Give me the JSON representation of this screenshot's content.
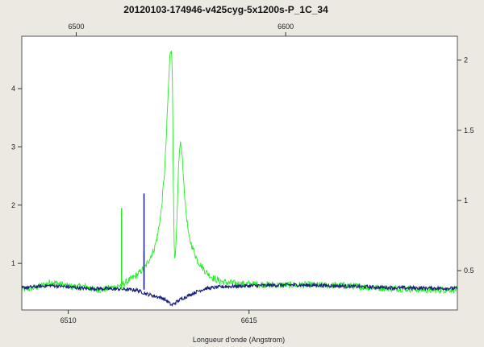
{
  "chart_data": {
    "type": "line",
    "title": "20120103-174946-v425cyg-5x1200s-P_1C_34",
    "xlabel": "Longueur d'onde (Angstrom)",
    "x_bottom": {
      "ticks": [
        6510,
        6615
      ],
      "labels": [
        "6510",
        "6615"
      ]
    },
    "x_top": {
      "ticks": [
        6500,
        6600
      ],
      "labels": [
        "6500",
        "6600"
      ]
    },
    "y_left": {
      "range": [
        0.2,
        4.9
      ],
      "ticks": [
        1,
        2,
        3,
        4
      ],
      "labels": [
        "1",
        "2",
        "3",
        "4"
      ]
    },
    "y_right": {
      "range": [
        0.22,
        2.17
      ],
      "ticks": [
        0.5,
        1,
        1.5,
        2
      ],
      "labels": [
        "0.5",
        "1",
        "1.5",
        "2"
      ]
    },
    "grid": false,
    "series": [
      {
        "color": "#22ee22",
        "axis": "left",
        "noise": 0.06,
        "x": [
          6483,
          6490,
          6495,
          6500,
          6505,
          6510,
          6515,
          6520,
          6525,
          6530,
          6535,
          6540,
          6545,
          6550,
          6555,
          6560,
          6562,
          6564,
          6566,
          6567,
          6568,
          6569,
          6570,
          6570.5,
          6571,
          6571.5,
          6572,
          6573,
          6574,
          6575,
          6576,
          6578,
          6580,
          6585,
          6590,
          6595,
          6600,
          6605,
          6610,
          6620,
          6630,
          6640,
          6650,
          6660,
          6670,
          6680,
          6690,
          6700,
          6710,
          6720,
          6730,
          6736
        ],
        "y": [
          0.55,
          0.58,
          0.62,
          0.68,
          0.65,
          0.6,
          0.6,
          0.6,
          0.55,
          0.55,
          0.58,
          0.62,
          0.7,
          0.8,
          0.95,
          1.25,
          1.5,
          1.9,
          2.6,
          3.2,
          3.9,
          4.55,
          4.7,
          4.2,
          2.4,
          1.4,
          1.0,
          1.6,
          2.6,
          3.1,
          2.9,
          2.0,
          1.45,
          1.05,
          0.85,
          0.73,
          0.68,
          0.66,
          0.65,
          0.64,
          0.63,
          0.63,
          0.63,
          0.62,
          0.62,
          0.6,
          0.58,
          0.57,
          0.56,
          0.54,
          0.55,
          0.55
        ]
      },
      {
        "color": "#1a1f7a",
        "axis": "left",
        "noise": 0.03,
        "x": [
          6483,
          6500,
          6520,
          6540,
          6550,
          6555,
          6560,
          6565,
          6568,
          6570,
          6572,
          6575,
          6580,
          6585,
          6590,
          6600,
          6620,
          6640,
          6660,
          6680,
          6700,
          6736
        ],
        "y": [
          0.58,
          0.62,
          0.57,
          0.56,
          0.54,
          0.48,
          0.44,
          0.4,
          0.34,
          0.28,
          0.32,
          0.38,
          0.45,
          0.52,
          0.57,
          0.6,
          0.62,
          0.63,
          0.62,
          0.6,
          0.58,
          0.57
        ]
      }
    ],
    "spikes": [
      {
        "color": "#22ee22",
        "x": 6541,
        "y": 1.95
      },
      {
        "color": "#22ee22",
        "x": 6554,
        "y": 1.2
      },
      {
        "color": "#1a1f7a",
        "x": 6554,
        "y": 2.2
      }
    ]
  }
}
